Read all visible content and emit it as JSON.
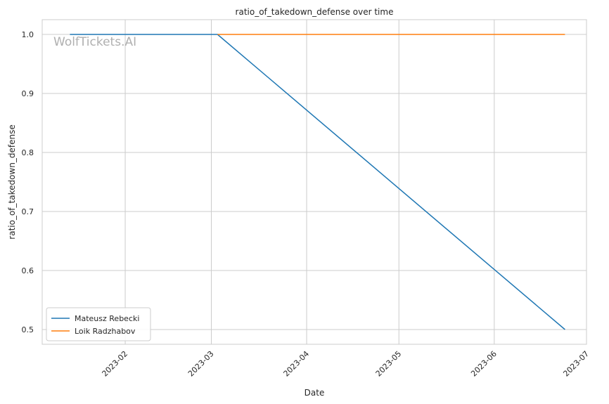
{
  "chart_data": {
    "type": "line",
    "title": "ratio_of_takedown_defense over time",
    "xlabel": "Date",
    "ylabel": "ratio_of_takedown_defense",
    "watermark": "WolfTickets.AI",
    "x_axis": {
      "kind": "date",
      "range": [
        "2023-01-05",
        "2023-07-01"
      ],
      "ticks": [
        "2023-02-01",
        "2023-03-01",
        "2023-04-01",
        "2023-05-01",
        "2023-06-01",
        "2023-07-01"
      ],
      "tick_labels": [
        "2023-02",
        "2023-03",
        "2023-04",
        "2023-05",
        "2023-06",
        "2023-07"
      ]
    },
    "y_axis": {
      "range": [
        0.475,
        1.025
      ],
      "ticks": [
        0.5,
        0.6,
        0.7,
        0.8,
        0.9,
        1.0
      ],
      "tick_labels": [
        "0.5",
        "0.6",
        "0.7",
        "0.8",
        "0.9",
        "1.0"
      ]
    },
    "grid": true,
    "legend_position": "lower-left",
    "series": [
      {
        "name": "Mateusz Rebecki",
        "color": "#1f77b4",
        "points": [
          {
            "x": "2023-01-14",
            "y": 1.0
          },
          {
            "x": "2023-03-03",
            "y": 1.0
          },
          {
            "x": "2023-06-24",
            "y": 0.5
          }
        ]
      },
      {
        "name": "Loik Radzhabov",
        "color": "#ff7f0e",
        "points": [
          {
            "x": "2023-03-03",
            "y": 1.0
          },
          {
            "x": "2023-06-24",
            "y": 1.0
          }
        ]
      }
    ]
  }
}
